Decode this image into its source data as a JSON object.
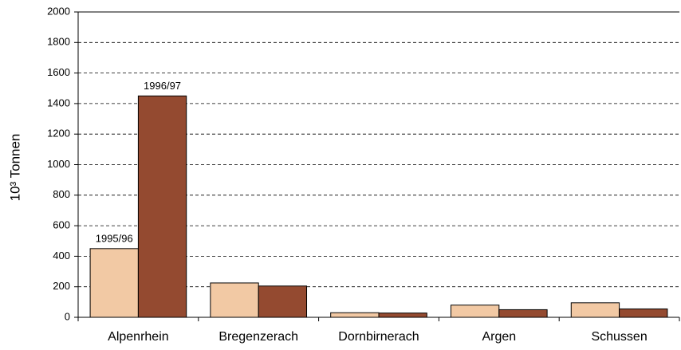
{
  "chart_data": {
    "type": "bar",
    "y_label": "10³ Tonnen",
    "categories": [
      "Alpenrhein",
      "Bregenzerach",
      "Dornbirnerach",
      "Argen",
      "Schussen"
    ],
    "series": [
      {
        "name": "1995/96",
        "color": "#f2c9a4",
        "values": [
          450,
          225,
          30,
          80,
          95
        ]
      },
      {
        "name": "1996/97",
        "color": "#944a30",
        "values": [
          1450,
          205,
          28,
          50,
          55
        ]
      }
    ],
    "ylim": [
      0,
      2000
    ],
    "yticks": [
      0,
      200,
      400,
      600,
      800,
      1000,
      1200,
      1400,
      1600,
      1800,
      2000
    ],
    "grid": true
  }
}
